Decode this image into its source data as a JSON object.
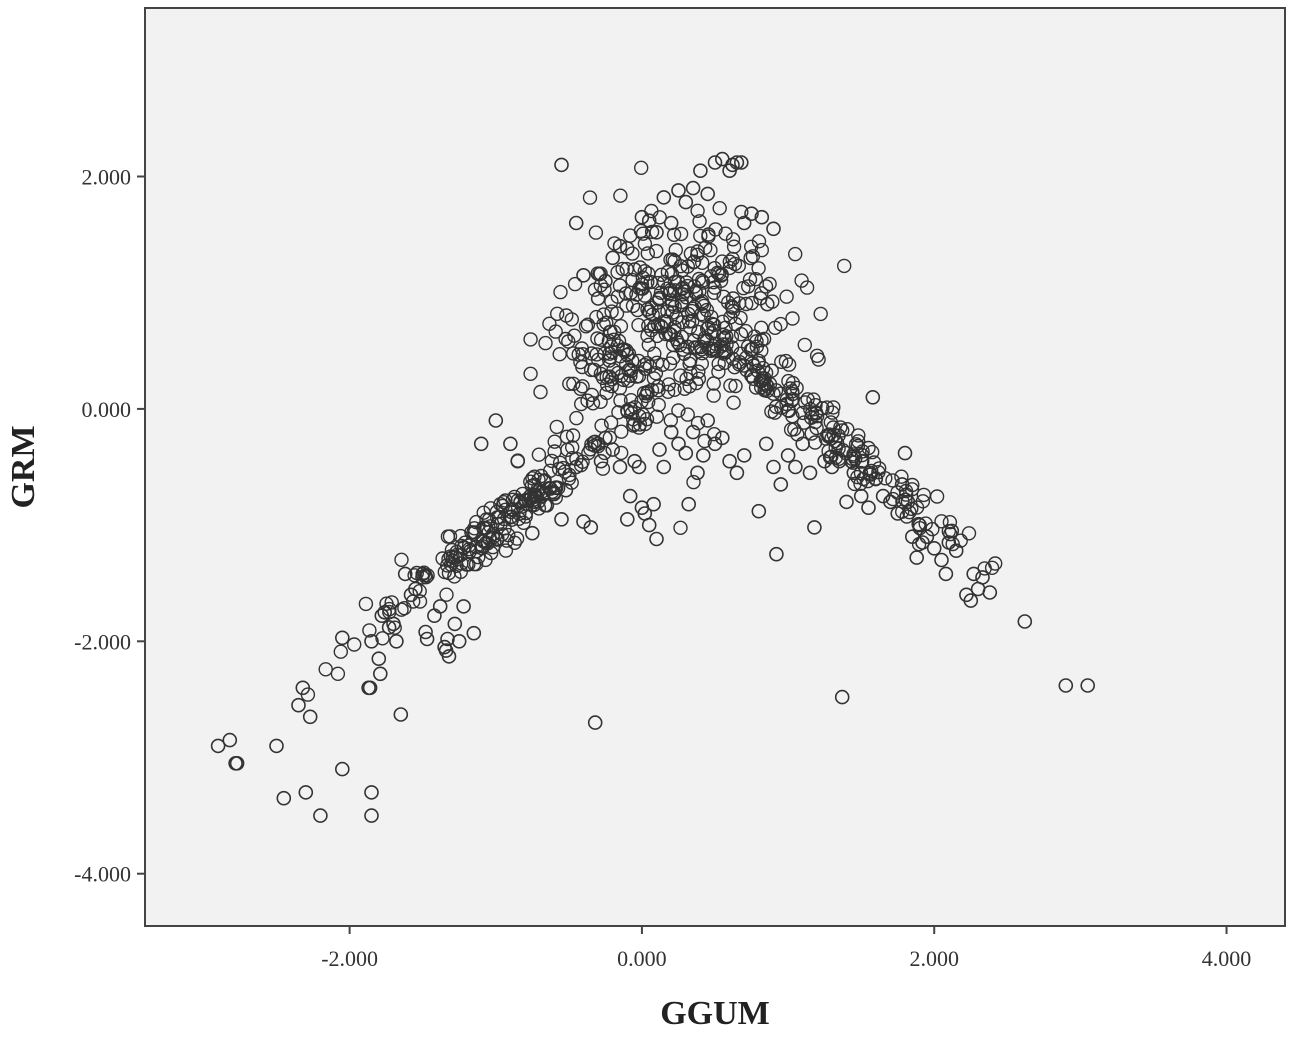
{
  "chart_data": {
    "type": "scatter",
    "title": "",
    "xlabel": "GGUM",
    "ylabel": "GRM",
    "xlim": [
      -3.4,
      4.4
    ],
    "ylim": [
      -4.45,
      3.45
    ],
    "x_ticks": [
      {
        "value": -2.0,
        "label": "-2.000"
      },
      {
        "value": 0.0,
        "label": "0.000"
      },
      {
        "value": 2.0,
        "label": "2.000"
      },
      {
        "value": 4.0,
        "label": "4.000"
      }
    ],
    "y_ticks": [
      {
        "value": 2.0,
        "label": "2.000"
      },
      {
        "value": 0.0,
        "label": "0.000"
      },
      {
        "value": -2.0,
        "label": "-2.000"
      },
      {
        "value": -4.0,
        "label": "-4.000"
      }
    ],
    "grid": false,
    "legend": "none",
    "marker": "open-circle",
    "colors": {
      "plot_background": "#f1f2f1",
      "marker": "#333333",
      "frame": "#444444"
    },
    "series": [
      {
        "points": [
          [
            -2.9,
            -2.9
          ],
          [
            -2.82,
            -2.85
          ],
          [
            -2.78,
            -3.05
          ],
          [
            -2.77,
            -3.05
          ],
          [
            -2.5,
            -2.9
          ],
          [
            -2.45,
            -3.35
          ],
          [
            -2.35,
            -2.55
          ],
          [
            -2.32,
            -2.4
          ],
          [
            -2.3,
            -3.3
          ],
          [
            -2.27,
            -2.65
          ],
          [
            -2.2,
            -3.5
          ],
          [
            -2.05,
            -1.97
          ],
          [
            -2.05,
            -3.1
          ],
          [
            -1.87,
            -2.4
          ],
          [
            -1.86,
            -2.4
          ],
          [
            -1.85,
            -2.0
          ],
          [
            -1.85,
            -3.3
          ],
          [
            -1.85,
            -3.5
          ],
          [
            -1.8,
            -2.15
          ],
          [
            -1.79,
            -2.28
          ],
          [
            -1.78,
            -1.78
          ],
          [
            -1.76,
            -1.75
          ],
          [
            -1.73,
            -1.88
          ],
          [
            -1.7,
            -1.85
          ],
          [
            -1.68,
            -2.0
          ],
          [
            -1.65,
            -2.63
          ],
          [
            -1.62,
            -1.42
          ],
          [
            -1.58,
            -1.6
          ],
          [
            -1.55,
            -1.55
          ],
          [
            -1.5,
            -1.42
          ],
          [
            -1.48,
            -1.92
          ],
          [
            -1.47,
            -1.98
          ],
          [
            -1.42,
            -1.78
          ],
          [
            -1.38,
            -1.7
          ],
          [
            -1.35,
            -2.05
          ],
          [
            -1.34,
            -2.08
          ],
          [
            -1.33,
            -1.98
          ],
          [
            -1.32,
            -2.13
          ],
          [
            -1.28,
            -1.85
          ],
          [
            -1.25,
            -2.0
          ],
          [
            -1.22,
            -1.7
          ],
          [
            -1.15,
            -1.93
          ],
          [
            -1.1,
            -0.3
          ],
          [
            -1.0,
            -0.1
          ],
          [
            -0.9,
            -0.3
          ],
          [
            -0.85,
            -0.45
          ],
          [
            -0.75,
            -1.07
          ],
          [
            -0.65,
            -0.83
          ],
          [
            -0.6,
            -0.72
          ],
          [
            -0.55,
            -0.95
          ],
          [
            -0.52,
            -0.7
          ],
          [
            -0.45,
            -0.5
          ],
          [
            -0.4,
            -0.97
          ],
          [
            -0.35,
            -1.02
          ],
          [
            -0.3,
            -0.3
          ],
          [
            -0.28,
            -0.45
          ],
          [
            -0.25,
            -0.25
          ],
          [
            -0.2,
            -0.35
          ],
          [
            -0.15,
            -0.5
          ],
          [
            -0.1,
            -0.95
          ],
          [
            -0.08,
            -0.75
          ],
          [
            -0.05,
            -0.45
          ],
          [
            -0.02,
            -0.5
          ],
          [
            0.0,
            -0.85
          ],
          [
            0.02,
            -0.9
          ],
          [
            0.05,
            -1.0
          ],
          [
            0.08,
            -0.82
          ],
          [
            0.1,
            -1.12
          ],
          [
            0.12,
            -0.35
          ],
          [
            0.15,
            -0.5
          ],
          [
            0.2,
            -0.2
          ],
          [
            0.25,
            -0.3
          ],
          [
            0.3,
            -0.38
          ],
          [
            0.35,
            -0.2
          ],
          [
            0.38,
            -0.55
          ],
          [
            0.42,
            -0.4
          ],
          [
            0.45,
            -0.1
          ],
          [
            0.5,
            -0.3
          ],
          [
            0.55,
            -0.25
          ],
          [
            0.6,
            -0.45
          ],
          [
            0.65,
            -0.55
          ],
          [
            0.7,
            -0.4
          ],
          [
            0.8,
            -0.88
          ],
          [
            0.85,
            -0.3
          ],
          [
            0.9,
            -0.5
          ],
          [
            0.92,
            -1.25
          ],
          [
            0.95,
            -0.65
          ],
          [
            1.0,
            -0.4
          ],
          [
            1.05,
            -0.5
          ],
          [
            1.1,
            -0.3
          ],
          [
            1.15,
            -0.55
          ],
          [
            1.18,
            -1.02
          ],
          [
            1.25,
            -0.45
          ],
          [
            1.3,
            -0.5
          ],
          [
            1.35,
            -0.45
          ],
          [
            1.4,
            -0.8
          ],
          [
            1.45,
            -0.55
          ],
          [
            1.5,
            -0.75
          ],
          [
            1.55,
            -0.85
          ],
          [
            1.58,
            0.1
          ],
          [
            1.6,
            -0.6
          ],
          [
            1.65,
            -0.75
          ],
          [
            1.7,
            -0.8
          ],
          [
            1.75,
            -0.9
          ],
          [
            1.78,
            -0.65
          ],
          [
            1.8,
            -0.38
          ],
          [
            1.82,
            -0.8
          ],
          [
            1.85,
            -1.1
          ],
          [
            1.88,
            -1.28
          ],
          [
            1.9,
            -1.0
          ],
          [
            1.92,
            -1.15
          ],
          [
            1.95,
            -1.1
          ],
          [
            2.0,
            -1.2
          ],
          [
            2.05,
            -1.3
          ],
          [
            2.08,
            -1.42
          ],
          [
            2.1,
            -1.15
          ],
          [
            2.12,
            -1.05
          ],
          [
            2.15,
            -1.22
          ],
          [
            2.22,
            -1.6
          ],
          [
            2.25,
            -1.65
          ],
          [
            2.27,
            -1.42
          ],
          [
            2.3,
            -1.55
          ],
          [
            2.33,
            -1.45
          ],
          [
            2.38,
            -1.58
          ],
          [
            2.62,
            -1.83
          ],
          [
            1.37,
            -2.48
          ],
          [
            -0.32,
            -2.7
          ],
          [
            2.9,
            -2.38
          ],
          [
            3.05,
            -2.38
          ],
          [
            0.32,
            -0.82
          ],
          [
            -0.55,
            2.1
          ],
          [
            -0.45,
            1.6
          ],
          [
            -0.4,
            1.15
          ],
          [
            -0.3,
            0.95
          ],
          [
            -0.25,
            1.1
          ],
          [
            -0.2,
            1.3
          ],
          [
            -0.15,
            1.4
          ],
          [
            -0.1,
            1.38
          ],
          [
            -0.05,
            1.2
          ],
          [
            0.0,
            1.65
          ],
          [
            0.05,
            1.62
          ],
          [
            0.1,
            1.52
          ],
          [
            0.15,
            1.82
          ],
          [
            0.2,
            1.6
          ],
          [
            0.25,
            1.88
          ],
          [
            0.3,
            1.78
          ],
          [
            0.35,
            1.9
          ],
          [
            0.4,
            2.05
          ],
          [
            0.45,
            1.85
          ],
          [
            0.5,
            2.12
          ],
          [
            0.55,
            2.15
          ],
          [
            0.6,
            2.05
          ],
          [
            0.62,
            2.1
          ],
          [
            0.65,
            2.12
          ],
          [
            0.68,
            2.12
          ],
          [
            0.7,
            1.6
          ],
          [
            0.75,
            1.68
          ],
          [
            0.82,
            1.65
          ],
          [
            0.9,
            1.55
          ]
        ]
      }
    ]
  }
}
